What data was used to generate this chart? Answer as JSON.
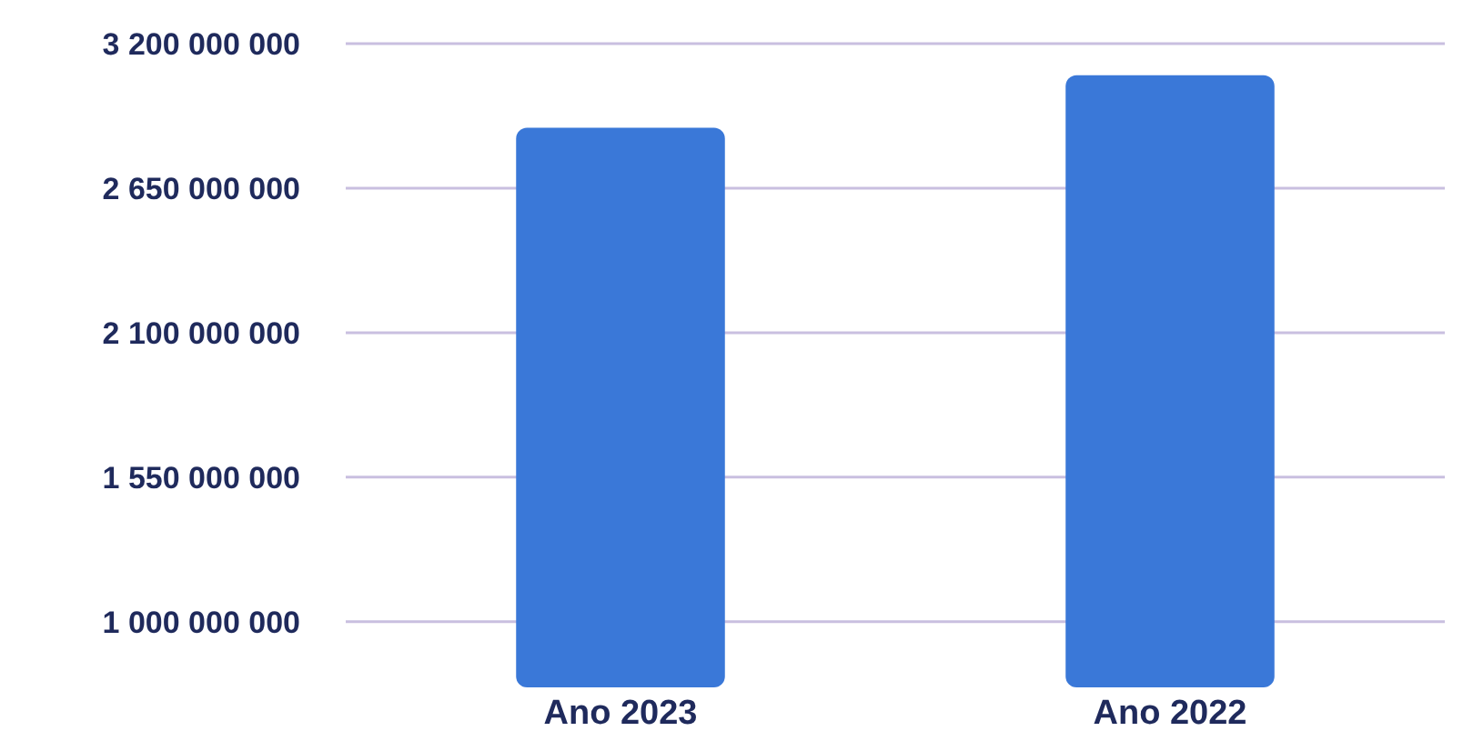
{
  "chart_data": {
    "type": "bar",
    "categories": [
      "Ano 2023",
      "Ano 2022"
    ],
    "series": [
      {
        "color": "#3a78d8",
        "values": [
          2880000000,
          3080000000
        ]
      }
    ],
    "ylim": [
      750000000,
      3200000000
    ],
    "yticks": [
      {
        "value": 1000000000,
        "label": "1 000 000 000"
      },
      {
        "value": 1550000000,
        "label": "1 550 000 000"
      },
      {
        "value": 2100000000,
        "label": "2 100 000 000"
      },
      {
        "value": 2650000000,
        "label": "2 650 000 000"
      },
      {
        "value": 3200000000,
        "label": "3 200 000 000"
      }
    ],
    "grid": "y"
  }
}
